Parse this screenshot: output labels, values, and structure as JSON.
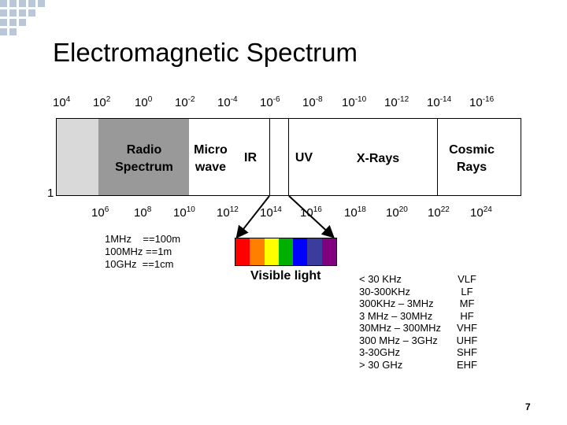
{
  "title": "Electromagnetic Spectrum",
  "wavelengths": [
    {
      "base": "10",
      "exp": "4"
    },
    {
      "base": "10",
      "exp": "2"
    },
    {
      "base": "10",
      "exp": "0"
    },
    {
      "base": "10",
      "exp": "-2"
    },
    {
      "base": "10",
      "exp": "-4"
    },
    {
      "base": "10",
      "exp": "-6"
    },
    {
      "base": "10",
      "exp": "-8"
    },
    {
      "base": "10",
      "exp": "-10"
    },
    {
      "base": "10",
      "exp": "-12"
    },
    {
      "base": "10",
      "exp": "-14"
    },
    {
      "base": "10",
      "exp": "-16"
    }
  ],
  "frequencies": [
    {
      "base": "10",
      "exp": "6"
    },
    {
      "base": "10",
      "exp": "8"
    },
    {
      "base": "10",
      "exp": "10"
    },
    {
      "base": "10",
      "exp": "12"
    },
    {
      "base": "10",
      "exp": "14"
    },
    {
      "base": "10",
      "exp": "16"
    },
    {
      "base": "10",
      "exp": "18"
    },
    {
      "base": "10",
      "exp": "20"
    },
    {
      "base": "10",
      "exp": "22"
    },
    {
      "base": "10",
      "exp": "24"
    }
  ],
  "left_marker": "1",
  "bands": {
    "radio_line1": "Radio",
    "radio_line2": "Spectrum",
    "micro_line1": "Micro",
    "micro_line2": "wave",
    "ir": "IR",
    "uv": "UV",
    "xrays": "X-Rays",
    "cosmic_line1": "Cosmic",
    "cosmic_line2": "Rays"
  },
  "conversions": [
    "1MHz    ==100m",
    "100MHz ==1m",
    "10GHz  ==1cm"
  ],
  "visible_label": "Visible light",
  "visible_colors": [
    "#ff0000",
    "#ff8000",
    "#ffff00",
    "#00b000",
    "#0000ff",
    "#3c3c9c",
    "#800080"
  ],
  "colors": {
    "radio_fill": "#999999",
    "left_fill": "#d9d9d9",
    "bullet": "#b9c7d6"
  },
  "radio_table": {
    "ranges": [
      "< 30 KHz",
      "30-300KHz",
      "300KHz – 3MHz",
      "3 MHz – 30MHz",
      "30MHz – 300MHz",
      "300 MHz – 3GHz",
      "3-30GHz",
      "> 30 GHz"
    ],
    "names": [
      "VLF",
      "LF",
      "MF",
      "HF",
      "VHF",
      "UHF",
      "SHF",
      "EHF"
    ]
  },
  "page_number": "7"
}
